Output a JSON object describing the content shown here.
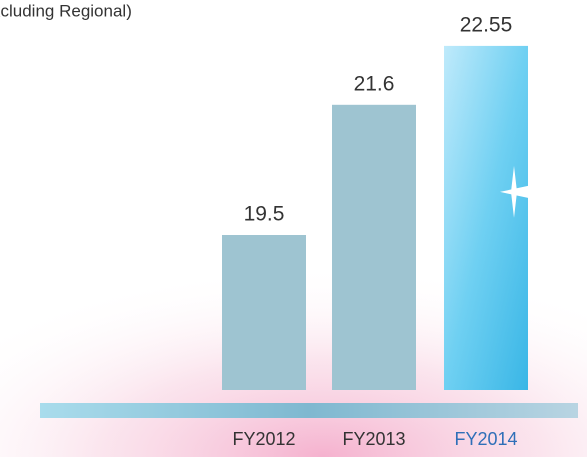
{
  "chart_data": {
    "type": "bar",
    "title": "xcluding Regional)",
    "categories": [
      "FY2012",
      "FY2013",
      "FY2014"
    ],
    "values": [
      19.5,
      21.6,
      22.55
    ],
    "color": "#9ec4d1",
    "highlight_color": "#5cc6ee",
    "ylim": [
      17,
      23
    ]
  }
}
